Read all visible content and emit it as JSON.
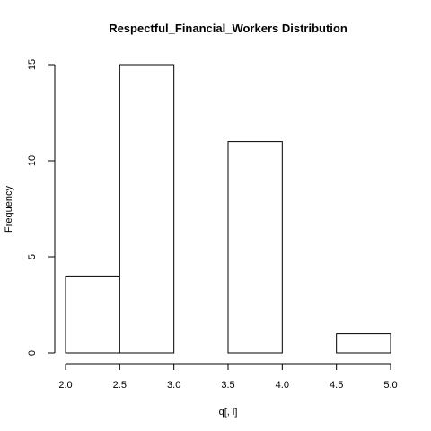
{
  "chart_data": {
    "type": "bar",
    "title": "Respectful_Financial_Workers Distribution",
    "xlabel": "q[, i]",
    "ylabel": "Frequency",
    "bins": [
      {
        "from": 2.0,
        "to": 2.5,
        "count": 4
      },
      {
        "from": 2.5,
        "to": 3.0,
        "count": 15
      },
      {
        "from": 3.0,
        "to": 3.5,
        "count": 0
      },
      {
        "from": 3.5,
        "to": 4.0,
        "count": 11
      },
      {
        "from": 4.0,
        "to": 4.5,
        "count": 0
      },
      {
        "from": 4.5,
        "to": 5.0,
        "count": 1
      }
    ],
    "xlim": [
      2.0,
      5.0
    ],
    "ylim": [
      0,
      15
    ],
    "xticks": [
      "2.0",
      "2.5",
      "3.0",
      "3.5",
      "4.0",
      "4.5",
      "5.0"
    ],
    "yticks": [
      "0",
      "5",
      "10",
      "15"
    ],
    "grid": false,
    "legend": "none"
  }
}
